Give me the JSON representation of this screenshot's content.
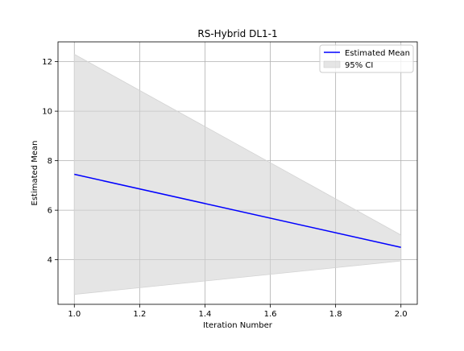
{
  "chart_data": {
    "type": "line",
    "title": "RS-Hybrid DL1-1",
    "xlabel": "Iteration Number",
    "ylabel": "Estimated Mean",
    "xlim": [
      0.95,
      2.05
    ],
    "ylim": [
      2.2,
      12.8
    ],
    "x_ticks": [
      "1.0",
      "1.2",
      "1.4",
      "1.6",
      "1.8",
      "2.0"
    ],
    "y_ticks": [
      "4",
      "6",
      "8",
      "10",
      "12"
    ],
    "grid": true,
    "legend_position": "top-right",
    "series": [
      {
        "name": "Estimated Mean",
        "kind": "line",
        "color": "#0000ff",
        "x": [
          1.0,
          2.0
        ],
        "y": [
          7.45,
          4.5
        ]
      },
      {
        "name": "95% CI",
        "kind": "band",
        "color": "#d3d3d3",
        "x": [
          1.0,
          2.0
        ],
        "lower": [
          2.6,
          3.95
        ],
        "upper": [
          12.3,
          5.0
        ]
      }
    ]
  }
}
